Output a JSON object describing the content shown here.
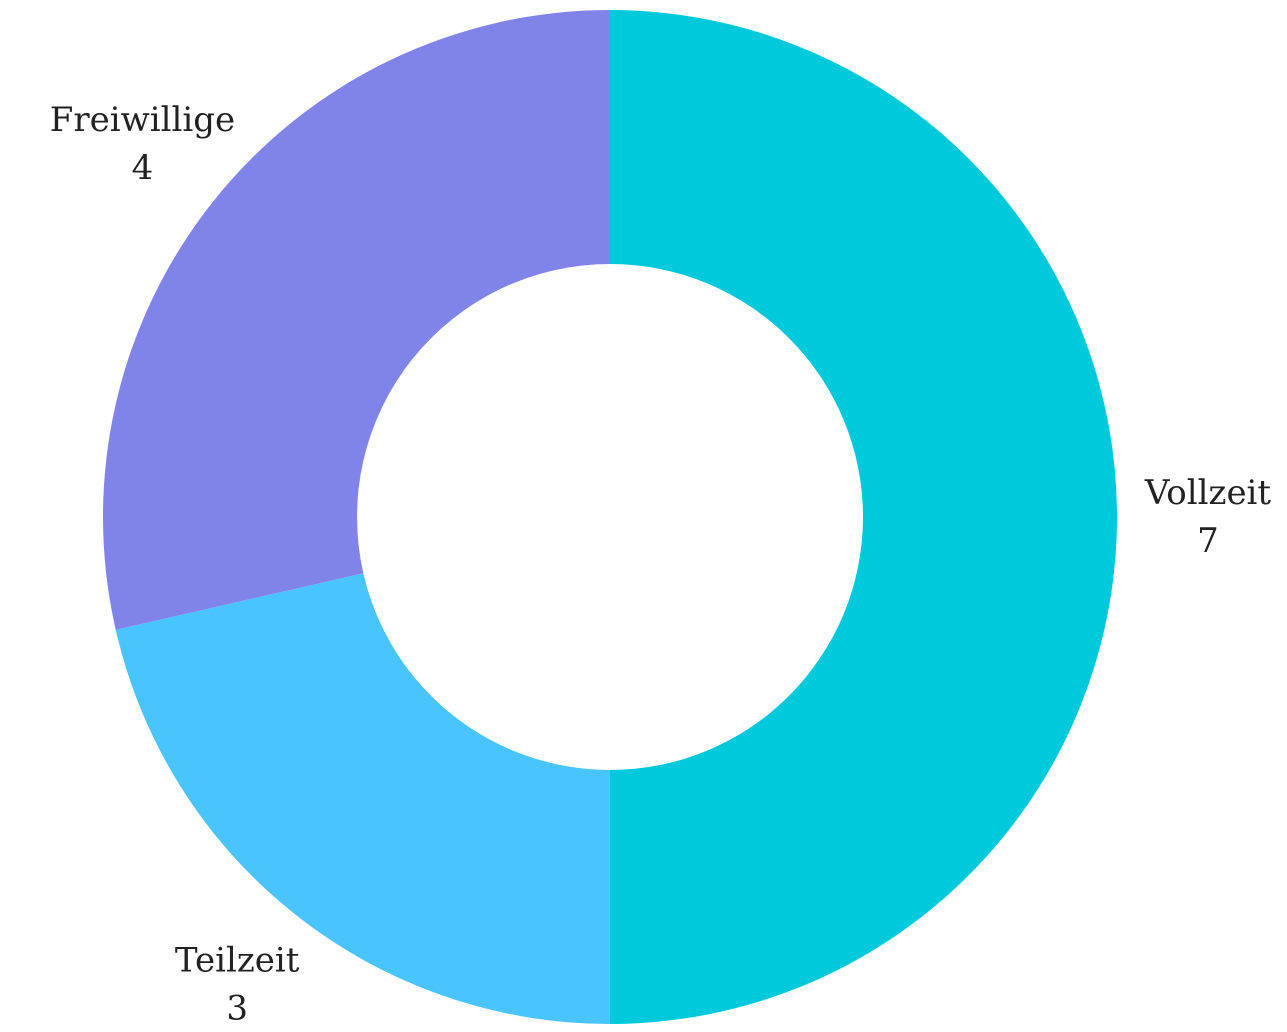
{
  "chart_data": {
    "type": "donut",
    "categories": [
      "Vollzeit",
      "Teilzeit",
      "Freiwillige"
    ],
    "values": [
      7,
      3,
      4
    ],
    "colors": [
      "#00c9dc",
      "#4ac4fc",
      "#8083e8"
    ]
  }
}
